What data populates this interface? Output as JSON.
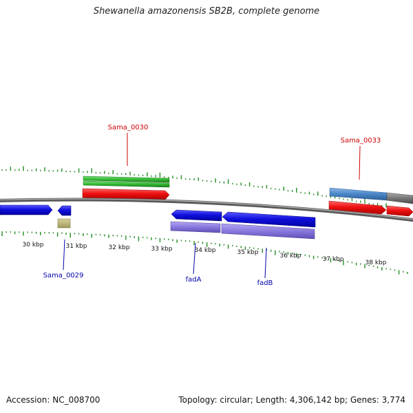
{
  "header": {
    "title": "Shewanella amazonensis SB2B, complete genome"
  },
  "footer": {
    "accession": "Accession: NC_008700",
    "summary": "Topology: circular; Length: 4,306,142 bp; Genes: 3,774"
  },
  "scale": {
    "ticks": [
      {
        "label": "30 kbp"
      },
      {
        "label": "31 kbp"
      },
      {
        "label": "32 kbp"
      },
      {
        "label": "33 kbp"
      },
      {
        "label": "34 kbp"
      },
      {
        "label": "35 kbp"
      },
      {
        "label": "36 kbp"
      },
      {
        "label": "37 kbp"
      },
      {
        "label": "38 kbp"
      }
    ]
  },
  "genes": [
    {
      "id": "Sama_0030",
      "label": "Sama_0030",
      "color": "#cc0000"
    },
    {
      "id": "Sama_0033",
      "label": "Sama_0033",
      "color": "#cc0000"
    },
    {
      "id": "Sama_0029",
      "label": "Sama_0029",
      "color": "#0000aa"
    },
    {
      "id": "fadA",
      "label": "fadA",
      "color": "#0000aa"
    },
    {
      "id": "fadB",
      "label": "fadB",
      "color": "#0000aa"
    }
  ],
  "colors": {
    "backbone": "#777777",
    "forward_cds": "#ee1111",
    "reverse_cds": "#1010dd",
    "rna": "#33bb33",
    "reverse_feature": "#8877dd",
    "misc_feature": "#4a86c8",
    "gap": "#777777",
    "repeat": "#bdb87a",
    "gc_skew": "#228b22"
  }
}
